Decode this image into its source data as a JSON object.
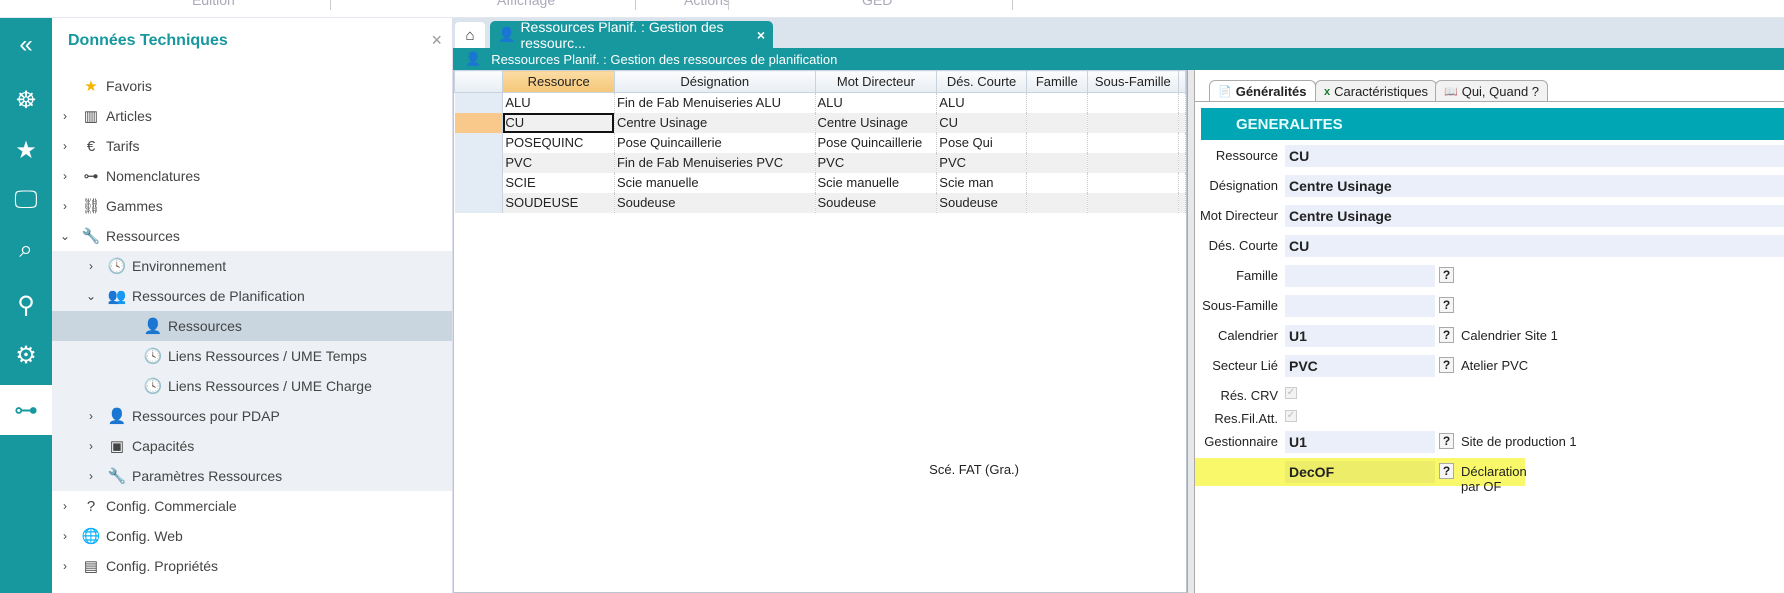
{
  "topmenu": [
    "Edition",
    "Affichage",
    "Actions",
    "GED"
  ],
  "iconbar": [
    {
      "icon": "double-chevron-left-icon",
      "glyph": "«"
    },
    {
      "icon": "wheel-icon",
      "glyph": "☸"
    },
    {
      "icon": "star-icon",
      "glyph": "★"
    },
    {
      "icon": "monitor-icon",
      "glyph": "🖵"
    },
    {
      "icon": "search-icon",
      "glyph": "⌕"
    },
    {
      "icon": "location-search-icon",
      "glyph": "⚲"
    },
    {
      "icon": "robot-arm-icon",
      "glyph": "⚙"
    },
    {
      "icon": "sitemap-icon",
      "glyph": "⊶",
      "selected": true
    }
  ],
  "tree": {
    "title": "Données Techniques",
    "close": "×",
    "items": [
      {
        "label": "Favoris",
        "icon": "star-icon",
        "glyph": "★",
        "level": 0,
        "chev": ""
      },
      {
        "label": "Articles",
        "icon": "library-icon",
        "glyph": "▥",
        "level": 0,
        "chev": "›"
      },
      {
        "label": "Tarifs",
        "icon": "hand-euro-icon",
        "glyph": "€",
        "level": 0,
        "chev": "›"
      },
      {
        "label": "Nomenclatures",
        "icon": "sitemap-icon",
        "glyph": "⊶",
        "level": 0,
        "chev": "›"
      },
      {
        "label": "Gammes",
        "icon": "flow-icon",
        "glyph": "⛓",
        "level": 0,
        "chev": "›"
      },
      {
        "label": "Ressources",
        "icon": "wrench-icon",
        "glyph": "🔧",
        "level": 0,
        "chev": "⌄"
      },
      {
        "label": "Environnement",
        "icon": "clock-icon",
        "glyph": "🕓",
        "level": 1,
        "chev": "›"
      },
      {
        "label": "Ressources de Planification",
        "icon": "users-icon",
        "glyph": "👥",
        "level": 1,
        "chev": "⌄"
      },
      {
        "label": "Ressources",
        "icon": "user-tie-icon",
        "glyph": "👤",
        "level": 2,
        "chev": "",
        "selected": true
      },
      {
        "label": "Liens Ressources /  UME Temps",
        "icon": "clock-icon",
        "glyph": "🕓",
        "level": 2,
        "chev": ""
      },
      {
        "label": "Liens Ressources /  UME Charge",
        "icon": "clock-icon",
        "glyph": "🕓",
        "level": 2,
        "chev": ""
      },
      {
        "label": "Ressources pour PDAP",
        "icon": "user-tie-icon",
        "glyph": "👤",
        "level": 1,
        "chev": "›"
      },
      {
        "label": "Capacités",
        "icon": "camera-folder-icon",
        "glyph": "▣",
        "level": 1,
        "chev": "›"
      },
      {
        "label": "Paramètres Ressources",
        "icon": "wrench-icon",
        "glyph": "🔧",
        "level": 1,
        "chev": "›"
      },
      {
        "label": "Config. Commerciale",
        "icon": "question-circle-icon",
        "glyph": "?",
        "level": 0,
        "chev": "›"
      },
      {
        "label": "Config. Web",
        "icon": "globe-icon",
        "glyph": "🌐",
        "level": 0,
        "chev": "›"
      },
      {
        "label": "Config. Propriétés",
        "icon": "cabinet-icon",
        "glyph": "▤",
        "level": 0,
        "chev": "›"
      }
    ]
  },
  "tabs": {
    "home_icon": "⌂",
    "doc_tab": "Ressources Planif. : Gestion des ressourc...",
    "close": "×"
  },
  "header": {
    "title": "Ressources Planif. : Gestion des ressources de planification"
  },
  "grid": {
    "columns": [
      "Ressource",
      "Désignation",
      "Mot Directeur",
      "Dés. Courte",
      "Famille",
      "Sous-Famille"
    ],
    "rows": [
      [
        "ALU",
        "Fin de Fab Menuiseries ALU",
        "ALU",
        "ALU",
        "",
        ""
      ],
      [
        "CU",
        "Centre Usinage",
        "Centre Usinage",
        "CU",
        "",
        ""
      ],
      [
        "POSEQUINC",
        "Pose Quincaillerie",
        "Pose Quincaillerie",
        "Pose Qui",
        "",
        ""
      ],
      [
        "PVC",
        "Fin de Fab Menuiseries PVC",
        "PVC",
        "PVC",
        "",
        ""
      ],
      [
        "SCIE",
        "Scie manuelle",
        "Scie manuelle",
        "Scie man",
        "",
        ""
      ],
      [
        "SOUDEUSE",
        "Soudeuse",
        "Soudeuse",
        "Soudeuse",
        "",
        ""
      ]
    ],
    "current_row": 1
  },
  "detail": {
    "tabs": [
      {
        "label": "Généralités",
        "icon": "document-icon"
      },
      {
        "label": "Caractéristiques",
        "icon": "excel-icon"
      },
      {
        "label": "Qui, Quand ?",
        "icon": "book-icon"
      }
    ],
    "section": "GENERALITES",
    "fields": [
      {
        "label": "Ressource",
        "value": "CU",
        "type": "wide"
      },
      {
        "label": "Désignation",
        "value": "Centre Usinage",
        "type": "wide"
      },
      {
        "label": "Mot Directeur",
        "value": "Centre Usinage",
        "type": "wide"
      },
      {
        "label": "Dés. Courte",
        "value": "CU",
        "type": "wide"
      },
      {
        "label": "Famille",
        "value": "",
        "type": "lookup",
        "desc": ""
      },
      {
        "label": "Sous-Famille",
        "value": "",
        "type": "lookup",
        "desc": ""
      },
      {
        "label": "Calendrier",
        "value": "U1",
        "type": "lookup",
        "desc": "Calendrier Site 1"
      },
      {
        "label": "Secteur Lié",
        "value": "PVC",
        "type": "lookup",
        "desc": "Atelier PVC"
      },
      {
        "label": "Rés. CRV",
        "checked": true,
        "type": "check"
      },
      {
        "label": "Res.Fil.Att.",
        "checked": true,
        "type": "check"
      },
      {
        "label": "Gestionnaire",
        "value": "U1",
        "type": "lookup",
        "desc": "Site de production 1"
      },
      {
        "label": "Scé. FAT (Gra.)",
        "value": "DecOF",
        "type": "lookup",
        "desc": "Déclaration par OF",
        "highlight": true
      }
    ],
    "lookup_glyph": "?",
    "check_glyph": "✓",
    "highlight_color": "#f8f86a"
  }
}
